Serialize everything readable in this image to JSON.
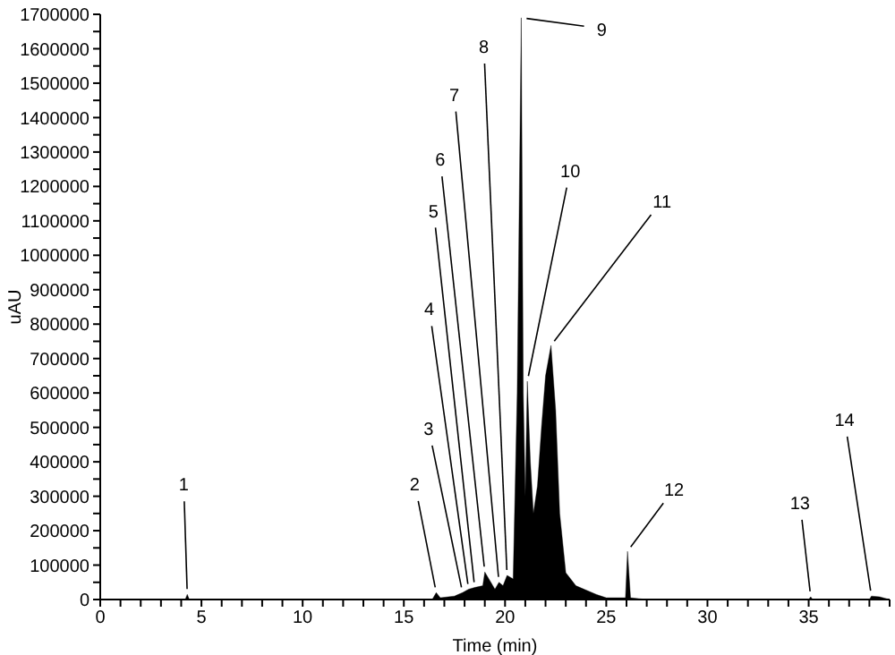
{
  "chart_data": {
    "type": "area",
    "xlabel": "Time (min)",
    "ylabel": "uAU",
    "xlim": [
      0,
      39
    ],
    "xticks": [
      0,
      {
        "value": 1,
        "label": null
      },
      {
        "value": 2,
        "label": null
      },
      {
        "value": 3,
        "label": null
      },
      {
        "value": 4,
        "label": null
      },
      5,
      {
        "value": 6,
        "label": null
      },
      {
        "value": 7,
        "label": null
      },
      {
        "value": 8,
        "label": null
      },
      {
        "value": 9,
        "label": null
      },
      10,
      {
        "value": 11,
        "label": null
      },
      {
        "value": 12,
        "label": null
      },
      {
        "value": 13,
        "label": null
      },
      {
        "value": 14,
        "label": null
      },
      15,
      {
        "value": 16,
        "label": null
      },
      {
        "value": 17,
        "label": null
      },
      {
        "value": 18,
        "label": null
      },
      {
        "value": 19,
        "label": null
      },
      20,
      {
        "value": 21,
        "label": null
      },
      {
        "value": 22,
        "label": null
      },
      {
        "value": 23,
        "label": null
      },
      {
        "value": 24,
        "label": null
      },
      25,
      {
        "value": 26,
        "label": null
      },
      {
        "value": 27,
        "label": null
      },
      {
        "value": 28,
        "label": null
      },
      {
        "value": 29,
        "label": null
      },
      30,
      {
        "value": 31,
        "label": null
      },
      {
        "value": 32,
        "label": null
      },
      {
        "value": 33,
        "label": null
      },
      {
        "value": 34,
        "label": null
      },
      35,
      {
        "value": 36,
        "label": null
      },
      {
        "value": 37,
        "label": null
      },
      {
        "value": 38,
        "label": null
      },
      {
        "value": 39,
        "label": null
      }
    ],
    "ylim": [
      0,
      1700000
    ],
    "yticks": [
      0,
      {
        "value": 50000,
        "label": null
      },
      100000,
      {
        "value": 150000,
        "label": null
      },
      200000,
      {
        "value": 250000,
        "label": null
      },
      300000,
      {
        "value": 350000,
        "label": null
      },
      400000,
      {
        "value": 450000,
        "label": null
      },
      500000,
      {
        "value": 550000,
        "label": null
      },
      600000,
      {
        "value": 650000,
        "label": null
      },
      700000,
      {
        "value": 750000,
        "label": null
      },
      800000,
      {
        "value": 850000,
        "label": null
      },
      900000,
      {
        "value": 950000,
        "label": null
      },
      1000000,
      {
        "value": 1050000,
        "label": null
      },
      1100000,
      {
        "value": 1150000,
        "label": null
      },
      1200000,
      {
        "value": 1250000,
        "label": null
      },
      1300000,
      {
        "value": 1350000,
        "label": null
      },
      1400000,
      {
        "value": 1450000,
        "label": null
      },
      1500000,
      {
        "value": 1550000,
        "label": null
      },
      1600000,
      {
        "value": 1650000,
        "label": null
      },
      1700000
    ],
    "grid": false,
    "legend": false,
    "x": [
      0,
      4.2,
      4.3,
      4.4,
      16.4,
      16.6,
      16.8,
      17.5,
      17.9,
      18.2,
      18.5,
      18.9,
      19.0,
      19.2,
      19.5,
      19.7,
      19.9,
      20.1,
      20.4,
      20.6,
      20.8,
      20.9,
      21.0,
      21.1,
      21.25,
      21.4,
      21.6,
      21.8,
      22.0,
      22.27,
      22.5,
      22.7,
      23.0,
      23.5,
      24.5,
      25.0,
      25.95,
      26.05,
      26.2,
      27.0,
      35.0,
      35.1,
      35.2,
      38.0,
      38.1,
      38.5,
      39.0
    ],
    "series": [
      {
        "color": "#000000",
        "values": [
          0,
          0,
          15000,
          0,
          0,
          20000,
          5000,
          10000,
          20000,
          30000,
          35000,
          40000,
          80000,
          60000,
          30000,
          50000,
          40000,
          70000,
          60000,
          600000,
          1690000,
          600000,
          300000,
          634000,
          400000,
          250000,
          330000,
          500000,
          650000,
          738000,
          550000,
          250000,
          78000,
          40000,
          15000,
          5000,
          5000,
          140000,
          5000,
          0,
          0,
          8000,
          0,
          0,
          10000,
          8000,
          0
        ]
      }
    ],
    "annotations": [
      {
        "text": "1",
        "x": 4.3,
        "y": 15000
      },
      {
        "text": "2",
        "x": 16.6,
        "y": 20000
      },
      {
        "text": "3",
        "x": 17.9,
        "y": 20000
      },
      {
        "text": "4",
        "x": 18.2,
        "y": 30000
      },
      {
        "text": "5",
        "x": 18.5,
        "y": 35000
      },
      {
        "text": "6",
        "x": 19.0,
        "y": 80000
      },
      {
        "text": "7",
        "x": 19.7,
        "y": 50000
      },
      {
        "text": "8",
        "x": 20.1,
        "y": 70000
      },
      {
        "text": "9",
        "x": 20.8,
        "y": 1690000
      },
      {
        "text": "10",
        "x": 21.1,
        "y": 634000
      },
      {
        "text": "11",
        "x": 22.27,
        "y": 738000
      },
      {
        "text": "12",
        "x": 26.05,
        "y": 140000
      },
      {
        "text": "13",
        "x": 35.1,
        "y": 8000
      },
      {
        "text": "14",
        "x": 38.1,
        "y": 10000
      }
    ]
  }
}
